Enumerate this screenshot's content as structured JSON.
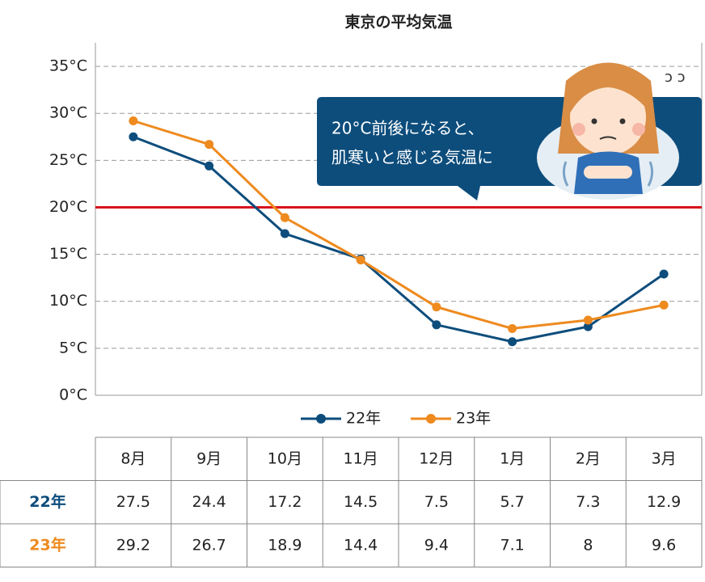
{
  "chart_data": {
    "type": "line",
    "title": "東京の平均気温",
    "categories": [
      "8月",
      "9月",
      "10月",
      "11月",
      "12月",
      "1月",
      "2月",
      "3月"
    ],
    "series": [
      {
        "name": "22年",
        "color": "#0d4d7c",
        "values": [
          27.5,
          24.4,
          17.2,
          14.5,
          7.5,
          5.7,
          7.3,
          12.9
        ]
      },
      {
        "name": "23年",
        "color": "#ee8a1e",
        "values": [
          29.2,
          26.7,
          18.9,
          14.4,
          9.4,
          7.1,
          8,
          9.6
        ]
      }
    ],
    "ylim": [
      0,
      37.5
    ],
    "yticks": [
      {
        "value": 0,
        "label": "0°C"
      },
      {
        "value": 5,
        "label": "5°C"
      },
      {
        "value": 10,
        "label": "10°C"
      },
      {
        "value": 15,
        "label": "15°C"
      },
      {
        "value": 20,
        "label": "20°C"
      },
      {
        "value": 25,
        "label": "25°C"
      },
      {
        "value": 30,
        "label": "30°C"
      },
      {
        "value": 35,
        "label": "35°C"
      }
    ],
    "grid": true,
    "reference_line": {
      "value": 20,
      "color": "#d9141c"
    },
    "annotation": [
      "20°C前後になると、",
      "肌寒いと感じる気温に"
    ],
    "legend": "bottom"
  }
}
